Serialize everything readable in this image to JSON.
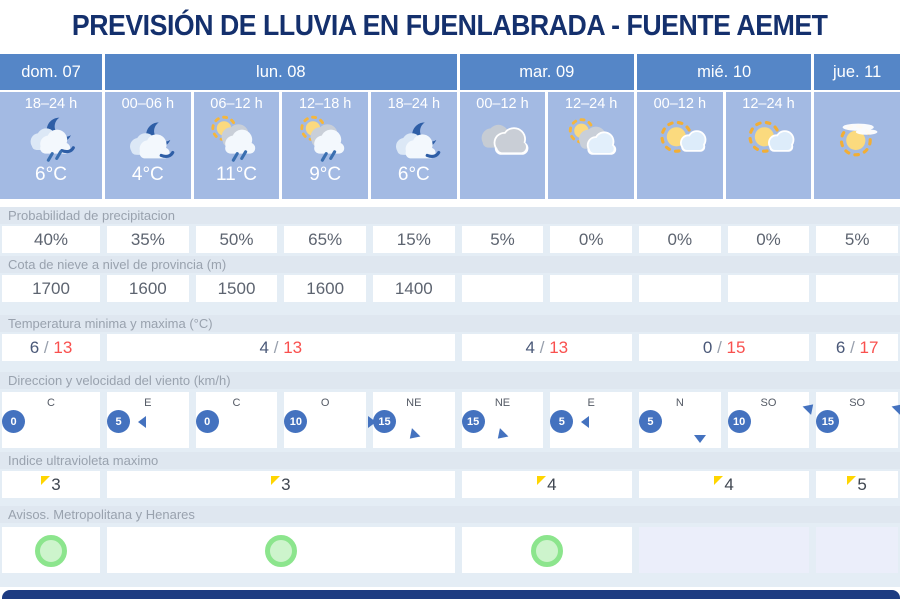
{
  "title": "PREVISIÓN DE LLUVIA EN FUENLABRADA - FUENTE AEMET",
  "days": [
    {
      "label": "dom. 07"
    },
    {
      "label": "lun. 08"
    },
    {
      "label": "mar. 09"
    },
    {
      "label": "mié. 10"
    },
    {
      "label": "jue. 11"
    }
  ],
  "slots": [
    {
      "time": "18–24 h",
      "icon": "moon-cloud-rain",
      "temp": "6°C"
    },
    {
      "time": "00–06 h",
      "icon": "moon-cloud",
      "temp": "4°C"
    },
    {
      "time": "06–12 h",
      "icon": "sun-cloud-rain",
      "temp": "11°C"
    },
    {
      "time": "12–18 h",
      "icon": "sun-cloud-rain",
      "temp": "9°C"
    },
    {
      "time": "18–24 h",
      "icon": "moon-cloud",
      "temp": "6°C"
    },
    {
      "time": "00–12 h",
      "icon": "clouds",
      "temp": ""
    },
    {
      "time": "12–24 h",
      "icon": "sun-behind-clouds",
      "temp": ""
    },
    {
      "time": "00–12 h",
      "icon": "sun-cloud",
      "temp": ""
    },
    {
      "time": "12–24 h",
      "icon": "sun-cloud",
      "temp": ""
    },
    {
      "time": "",
      "icon": "sun-haze",
      "temp": ""
    }
  ],
  "sections": {
    "precipitation": {
      "label": "Probabilidad de precipitacion",
      "values": [
        "40%",
        "35%",
        "50%",
        "65%",
        "15%",
        "5%",
        "0%",
        "0%",
        "0%",
        "5%"
      ]
    },
    "snow": {
      "label": "Cota de nieve a nivel de provincia (m)",
      "values": [
        "1700",
        "1600",
        "1500",
        "1600",
        "1400",
        "",
        "",
        "",
        "",
        ""
      ]
    },
    "temperature": {
      "label": "Temperatura minima y maxima (°C)",
      "separator": "/",
      "values": [
        {
          "min": "6",
          "max": "13"
        },
        {
          "min": "4",
          "max": "13"
        },
        {
          "min": "4",
          "max": "13"
        },
        {
          "min": "0",
          "max": "15"
        },
        {
          "min": "6",
          "max": "17"
        }
      ]
    },
    "wind": {
      "label": "Direccion y velocidad del viento (km/h)",
      "values": [
        {
          "dir": "C",
          "speed": "0",
          "arrow": "none"
        },
        {
          "dir": "E",
          "speed": "5",
          "arrow": "left"
        },
        {
          "dir": "C",
          "speed": "0",
          "arrow": "none"
        },
        {
          "dir": "O",
          "speed": "10",
          "arrow": "right"
        },
        {
          "dir": "NE",
          "speed": "15",
          "arrow": "down-left"
        },
        {
          "dir": "NE",
          "speed": "15",
          "arrow": "down-left"
        },
        {
          "dir": "E",
          "speed": "5",
          "arrow": "left"
        },
        {
          "dir": "N",
          "speed": "5",
          "arrow": "down"
        },
        {
          "dir": "SO",
          "speed": "10",
          "arrow": "up-right"
        },
        {
          "dir": "SO",
          "speed": "15",
          "arrow": "up-right"
        }
      ]
    },
    "uv": {
      "label": "Indice ultravioleta maximo",
      "values": [
        "3",
        "3",
        "4",
        "4",
        "5"
      ]
    },
    "warnings": {
      "label": "Avisos. Metropolitana y Henares",
      "values": [
        "circle",
        "circle",
        "circle",
        "none",
        "none"
      ]
    }
  },
  "colors": {
    "accent_blue": "#5586c7",
    "slot_blue": "#a3bae3",
    "title_navy": "#14306d",
    "max_temp_red": "#f9504e",
    "wind_blue": "#4472bf",
    "uv_yellow": "#ffd500",
    "warning_green": "#8ce58d",
    "bottom_navy": "#1d3c82"
  }
}
